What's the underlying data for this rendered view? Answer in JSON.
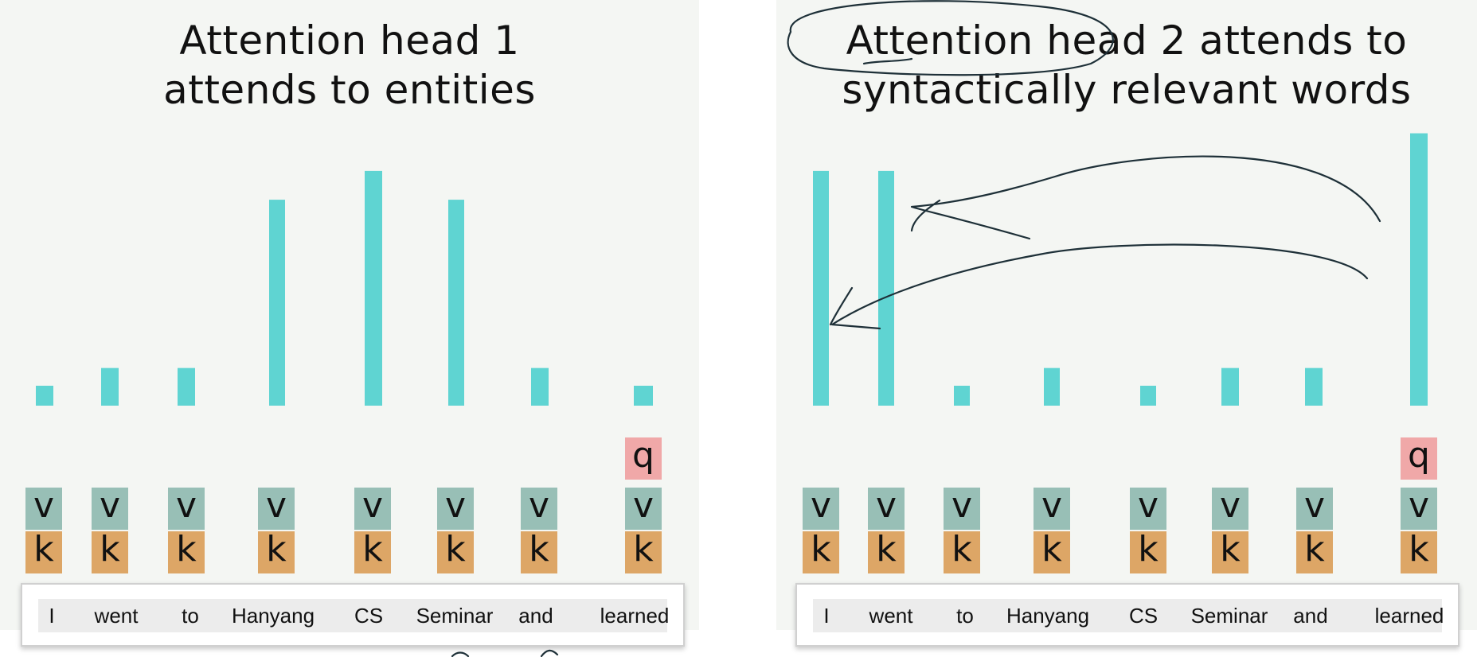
{
  "chart_data": [
    {
      "type": "bar",
      "title": "Attention head 1 attends to entities",
      "title_lines": [
        "Attention head 1",
        "attends to entities"
      ],
      "categories": [
        "I",
        "went",
        "to",
        "Hanyang",
        "CS",
        "Seminar",
        "and",
        "learned"
      ],
      "values": [
        0.09,
        0.17,
        0.17,
        0.93,
        1.06,
        0.93,
        0.17,
        0.09
      ],
      "ylim": [
        0,
        1.25
      ],
      "query_token": "learned",
      "labels": {
        "q": "q",
        "v": "v",
        "k": "k"
      },
      "bar_color": "#5fd4d2"
    },
    {
      "type": "bar",
      "title": "Attention head 2 attends to syntactically relevant words",
      "title_lines": [
        "Attention head 2 attends to",
        "syntactically relevant words"
      ],
      "categories": [
        "I",
        "went",
        "to",
        "Hanyang",
        "CS",
        "Seminar",
        "and",
        "learned"
      ],
      "values": [
        1.06,
        1.06,
        0.09,
        0.17,
        0.09,
        0.17,
        0.17,
        1.23
      ],
      "ylim": [
        0,
        1.25
      ],
      "query_token": "learned",
      "labels": {
        "q": "q",
        "v": "v",
        "k": "k"
      },
      "bar_color": "#5fd4d2",
      "annotations": [
        "circle around 'Attention head 2'",
        "arrow from 'learned' to 'went'",
        "arrow from 'learned' to 'I'"
      ]
    }
  ],
  "colors": {
    "bar": "#5fd4d2",
    "query_box": "#f0a8a8",
    "value_box": "#98bfb6",
    "key_box": "#dda666",
    "panel_bg": "#f4f6f3",
    "ink": "#1e3038"
  }
}
